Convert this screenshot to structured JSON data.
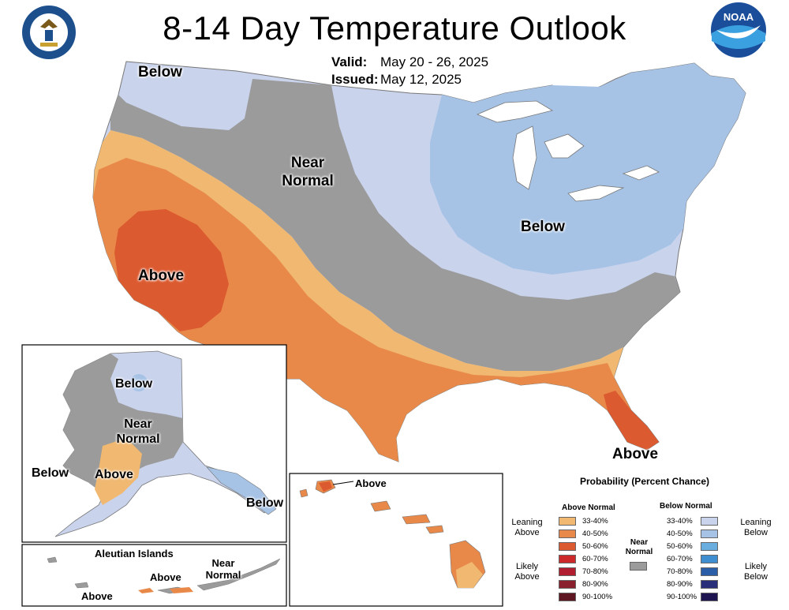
{
  "header": {
    "title": "8-14 Day Temperature Outlook",
    "valid_label": "Valid:",
    "valid_value": "May 20 - 26, 2025",
    "issued_label": "Issued:",
    "issued_value": "May 12, 2025",
    "noaa_logo_text": "NOAA"
  },
  "map_labels": {
    "conus_below_nw": "Below",
    "conus_near_normal": "Near Normal",
    "conus_below_east": "Below",
    "conus_above_sw": "Above",
    "conus_above_fl": "Above",
    "ak_below_north": "Below",
    "ak_near_normal": "Near Normal",
    "ak_below_west": "Below",
    "ak_above": "Above",
    "ak_below_se": "Below",
    "aleutian_title": "Aleutian Islands",
    "aleutian_above_1": "Above",
    "aleutian_above_2": "Above",
    "aleutian_near_normal": "Near Normal",
    "hawaii_above": "Above"
  },
  "legend": {
    "title": "Probability (Percent Chance)",
    "above_header": "Above Normal",
    "below_header": "Below Normal",
    "leaning_above": "Leaning Above",
    "likely_above": "Likely Above",
    "leaning_below": "Leaning Below",
    "likely_below": "Likely Below",
    "near_normal": "Near Normal",
    "near_normal_color": "#9b9b9b",
    "above_bins": [
      {
        "range": "33-40%",
        "color": "#f0b870"
      },
      {
        "range": "40-50%",
        "color": "#e8894a"
      },
      {
        "range": "50-60%",
        "color": "#dc5a30"
      },
      {
        "range": "60-70%",
        "color": "#cc2a2a"
      },
      {
        "range": "70-80%",
        "color": "#b01e30"
      },
      {
        "range": "80-90%",
        "color": "#8a1f2e"
      },
      {
        "range": "90-100%",
        "color": "#5e1620"
      }
    ],
    "below_bins": [
      {
        "range": "33-40%",
        "color": "#c9d3ec"
      },
      {
        "range": "40-50%",
        "color": "#a6c3e6"
      },
      {
        "range": "50-60%",
        "color": "#6aaee0"
      },
      {
        "range": "60-70%",
        "color": "#3f8fd0"
      },
      {
        "range": "70-80%",
        "color": "#2a5fa8"
      },
      {
        "range": "80-90%",
        "color": "#2a2f7a"
      },
      {
        "range": "90-100%",
        "color": "#1e1550"
      }
    ]
  }
}
